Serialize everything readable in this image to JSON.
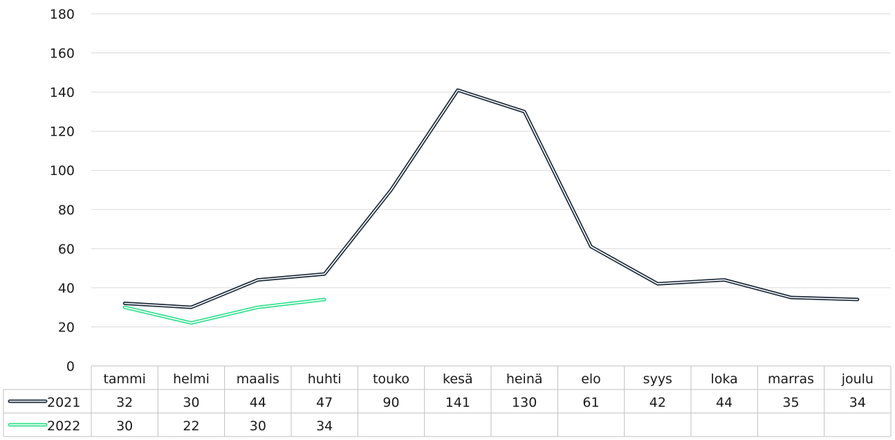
{
  "chart_data": {
    "type": "line",
    "categories": [
      "tammi",
      "helmi",
      "maalis",
      "huhti",
      "touko",
      "kesä",
      "heinä",
      "elo",
      "syys",
      "loka",
      "marras",
      "joulu"
    ],
    "series": [
      {
        "name": "2021",
        "values": [
          32,
          30,
          44,
          47,
          90,
          141,
          130,
          61,
          42,
          44,
          35,
          34
        ],
        "color": "#1c2b3a"
      },
      {
        "name": "2022",
        "values": [
          30,
          22,
          30,
          34,
          null,
          null,
          null,
          null,
          null,
          null,
          null,
          null
        ],
        "color": "#2fe08c"
      }
    ],
    "ylim": [
      0,
      180
    ],
    "yticks": [
      0,
      20,
      40,
      60,
      80,
      100,
      120,
      140,
      160,
      180
    ],
    "grid": true,
    "data_table": true
  }
}
